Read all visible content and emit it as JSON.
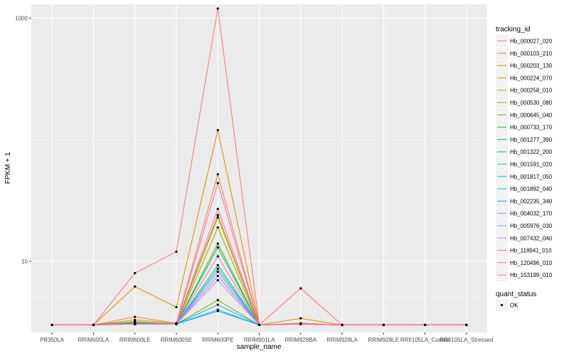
{
  "chart_data": {
    "type": "line",
    "x_label": "sample_name",
    "y_label": "FPKM + 1",
    "y_scale": "log10",
    "y_range": [
      2.6,
      1300
    ],
    "y_ticks": [
      10,
      1000
    ],
    "categories": [
      "PB350LA",
      "RRIM600LA",
      "RRIM600LE",
      "RRIM600SE",
      "RRIM600PE",
      "RRIM901LA",
      "RRIM928BA",
      "RRIM928LA",
      "RRIM928LE",
      "RRII105LA_Control",
      "RRII105LA_Stressed"
    ],
    "grid": true,
    "legend_position": "right",
    "series": [
      {
        "name": "Hb_000027_020",
        "color": "#F8766D",
        "values": [
          3,
          3,
          8,
          12,
          1200,
          3,
          6,
          3,
          3,
          3,
          3
        ]
      },
      {
        "name": "Hb_000103_210",
        "color": "#EE8042",
        "values": [
          3,
          3,
          3.5,
          3.1,
          52,
          3,
          3.1,
          3,
          3,
          3,
          3
        ]
      },
      {
        "name": "Hb_000203_130",
        "color": "#E08B00",
        "values": [
          3,
          3,
          6.2,
          4.2,
          120,
          3,
          3.4,
          3,
          3,
          3,
          3
        ]
      },
      {
        "name": "Hb_000224_070",
        "color": "#CC9600",
        "values": [
          3,
          3,
          3.3,
          3.1,
          24,
          3,
          3.1,
          3,
          3,
          3,
          3
        ]
      },
      {
        "name": "Hb_000258_010",
        "color": "#B89F00",
        "values": [
          3,
          3,
          3.2,
          3.05,
          23,
          3,
          3.05,
          3,
          3,
          3,
          3
        ]
      },
      {
        "name": "Hb_000530_080",
        "color": "#9DA700",
        "values": [
          3,
          3,
          3.15,
          3.05,
          19,
          3,
          3.05,
          3,
          3,
          3,
          3
        ]
      },
      {
        "name": "Hb_000645_040",
        "color": "#7CAE00",
        "values": [
          3,
          3,
          3.1,
          3.05,
          4.8,
          3,
          3.05,
          3,
          3,
          3,
          3
        ]
      },
      {
        "name": "Hb_000733_170",
        "color": "#39B600",
        "values": [
          3,
          3,
          3.1,
          3.05,
          14,
          3,
          3.05,
          3,
          3,
          3,
          3
        ]
      },
      {
        "name": "Hb_001277_390",
        "color": "#00BB4E",
        "values": [
          3,
          3,
          3.1,
          3.05,
          13,
          3,
          3.05,
          3,
          3,
          3,
          3
        ]
      },
      {
        "name": "Hb_001322_200",
        "color": "#00BF7D",
        "values": [
          3,
          3,
          3.1,
          3.05,
          9.3,
          3,
          3.05,
          3,
          3,
          3,
          3
        ]
      },
      {
        "name": "Hb_001591_020",
        "color": "#00C1A3",
        "values": [
          3,
          3,
          3.1,
          3.05,
          8.7,
          3,
          3.05,
          3,
          3,
          3,
          3
        ]
      },
      {
        "name": "Hb_001817_050",
        "color": "#00BFC4",
        "values": [
          3,
          3,
          3.1,
          3.05,
          4.4,
          3,
          3.05,
          3,
          3,
          3,
          3
        ]
      },
      {
        "name": "Hb_001892_040",
        "color": "#00B8E5",
        "values": [
          3,
          3,
          3.1,
          3.05,
          4.0,
          3,
          3.05,
          3,
          3,
          3,
          3
        ]
      },
      {
        "name": "Hb_002235_340",
        "color": "#00ABFD",
        "values": [
          3,
          3,
          3.05,
          3.05,
          3.9,
          3,
          3.05,
          3,
          3,
          3,
          3
        ]
      },
      {
        "name": "Hb_004032_170",
        "color": "#619CFF",
        "values": [
          3,
          3,
          3.05,
          3.05,
          7.6,
          3,
          3.05,
          3,
          3,
          3,
          3
        ]
      },
      {
        "name": "Hb_005976_030",
        "color": "#A58AFF",
        "values": [
          3,
          3,
          3.05,
          3.05,
          8.2,
          3,
          3.05,
          3,
          3,
          3,
          3
        ]
      },
      {
        "name": "Hb_007432_040",
        "color": "#DB72FB",
        "values": [
          3,
          3,
          3.05,
          3.05,
          7.0,
          3,
          3.05,
          3,
          3,
          3,
          3
        ]
      },
      {
        "name": "Hb_118941_010",
        "color": "#F863DF",
        "values": [
          3,
          3,
          3.05,
          3.05,
          11,
          3,
          3.05,
          3,
          3,
          3,
          3
        ]
      },
      {
        "name": "Hb_120496_010",
        "color": "#FF62BC",
        "values": [
          3,
          3,
          3.05,
          3.05,
          27,
          3,
          3.05,
          3,
          3,
          3,
          3
        ]
      },
      {
        "name": "Hb_153199_010",
        "color": "#FF6C91",
        "values": [
          3,
          3,
          3.05,
          3.05,
          44,
          3,
          3.05,
          3,
          3,
          3,
          3
        ]
      }
    ]
  },
  "legend": {
    "title": "tracking_id",
    "shape_title": "quant_status",
    "shape_label": "OK"
  },
  "colors": {
    "panel": "#EBEBEB",
    "grid_major": "#FFFFFF",
    "grid_minor": "#F7F7F7",
    "point": "#000000"
  }
}
